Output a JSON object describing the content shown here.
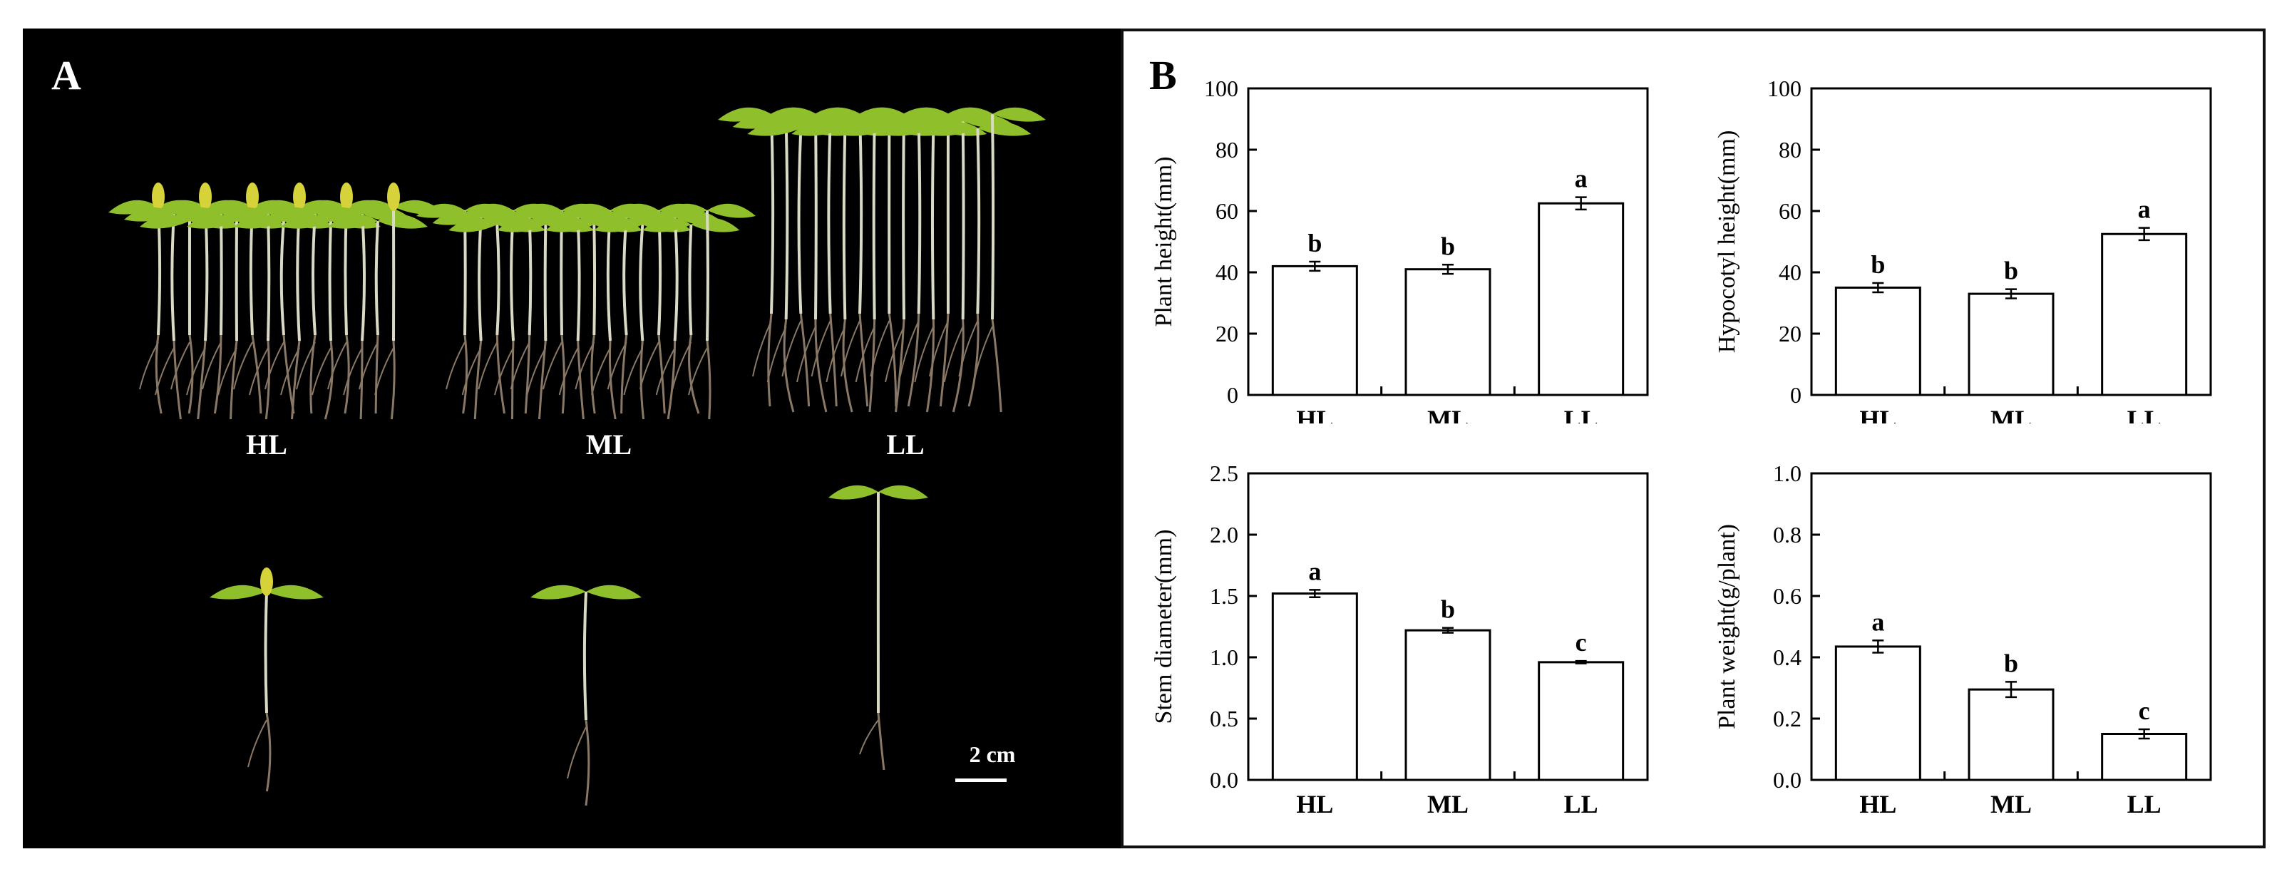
{
  "panel_a": {
    "letter": "A",
    "groups": [
      "HL",
      "ML",
      "LL"
    ],
    "scale_label": "2 cm",
    "colors": {
      "background": "#000000",
      "leaf": "#8fbf2a",
      "leaf_yellow": "#d6d23a",
      "stem": "#d9d9c4",
      "root": "#8a7866"
    }
  },
  "panel_b": {
    "letter": "B"
  },
  "chart_data": [
    {
      "type": "bar",
      "categories": [
        "HL",
        "ML",
        "LL"
      ],
      "values": [
        42,
        41,
        62.5
      ],
      "errors": [
        1.5,
        1.5,
        2
      ],
      "letters": [
        "b",
        "b",
        "a"
      ],
      "ylabel": "Plant height(mm)",
      "ylim": [
        0,
        100
      ],
      "yticks": [
        "0",
        "20",
        "40",
        "60",
        "80",
        "100"
      ]
    },
    {
      "type": "bar",
      "categories": [
        "HL",
        "ML",
        "LL"
      ],
      "values": [
        35,
        33,
        52.5
      ],
      "errors": [
        1.5,
        1.5,
        2
      ],
      "letters": [
        "b",
        "b",
        "a"
      ],
      "ylabel": "Hypocotyl height(mm)",
      "ylim": [
        0,
        100
      ],
      "yticks": [
        "0",
        "20",
        "40",
        "60",
        "80",
        "100"
      ]
    },
    {
      "type": "bar",
      "categories": [
        "HL",
        "ML",
        "LL"
      ],
      "values": [
        1.52,
        1.22,
        0.96
      ],
      "errors": [
        0.03,
        0.02,
        0.01
      ],
      "letters": [
        "a",
        "b",
        "c"
      ],
      "ylabel": "Stem diameter(mm)",
      "ylim": [
        0,
        2.5
      ],
      "yticks": [
        "0.0",
        "0.5",
        "1.0",
        "1.5",
        "2.0",
        "2.5"
      ]
    },
    {
      "type": "bar",
      "categories": [
        "HL",
        "ML",
        "LL"
      ],
      "values": [
        0.435,
        0.295,
        0.15
      ],
      "errors": [
        0.02,
        0.025,
        0.015
      ],
      "letters": [
        "a",
        "b",
        "c"
      ],
      "ylabel": "Plant weight(g/plant)",
      "ylim": [
        0,
        1.0
      ],
      "yticks": [
        "0.0",
        "0.2",
        "0.4",
        "0.6",
        "0.8",
        "1.0"
      ]
    }
  ]
}
